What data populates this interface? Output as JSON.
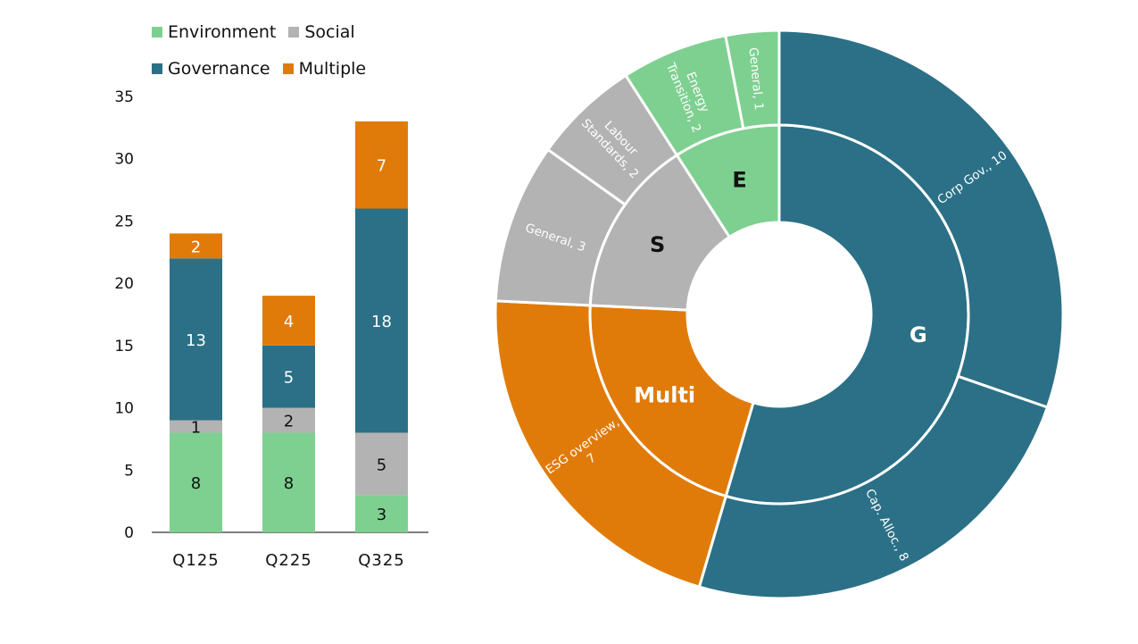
{
  "colors": {
    "environment": "#7ed090",
    "social": "#b3b3b3",
    "governance": "#2b7086",
    "multiple": "#e07b0a"
  },
  "chart_data": [
    {
      "type": "bar",
      "stacked": true,
      "categories": [
        "Q125",
        "Q225",
        "Q325"
      ],
      "series": [
        {
          "name": "Environment",
          "color_key": "environment",
          "values": [
            8,
            8,
            3
          ]
        },
        {
          "name": "Social",
          "color_key": "social",
          "values": [
            1,
            2,
            5
          ]
        },
        {
          "name": "Governance",
          "color_key": "governance",
          "values": [
            13,
            5,
            18
          ]
        },
        {
          "name": "Multiple",
          "color_key": "multiple",
          "values": [
            2,
            4,
            7
          ]
        }
      ],
      "legend": {
        "placement": "top",
        "rows": [
          [
            "Environment",
            "Social"
          ],
          [
            "Governance",
            "Multiple"
          ]
        ]
      },
      "ylim": [
        0,
        35
      ],
      "yticks": [
        0,
        5,
        10,
        15,
        20,
        25,
        30,
        35
      ],
      "grid": false,
      "data_labels": true
    },
    {
      "type": "sunburst",
      "inner": [
        {
          "label": "G",
          "value": 18,
          "color_key": "governance"
        },
        {
          "label": "Multi",
          "value": 7,
          "color_key": "multiple"
        },
        {
          "label": "S",
          "value": 5,
          "color_key": "social"
        },
        {
          "label": "E",
          "value": 3,
          "color_key": "environment"
        }
      ],
      "outer": [
        {
          "label": "Corp Gov., 10",
          "value": 10,
          "color_key": "governance"
        },
        {
          "label": "Cap. Alloc., 8",
          "value": 8,
          "color_key": "governance"
        },
        {
          "label": "ESG overview, 7",
          "value": 7,
          "color_key": "multiple"
        },
        {
          "label": "General, 3",
          "value": 3,
          "color_key": "social"
        },
        {
          "label": "Labour Standards, 2",
          "value": 2,
          "color_key": "social"
        },
        {
          "label": "Energy Transition, 2",
          "value": 2,
          "color_key": "environment"
        },
        {
          "label": "General, 1",
          "value": 1,
          "color_key": "environment"
        }
      ]
    }
  ]
}
